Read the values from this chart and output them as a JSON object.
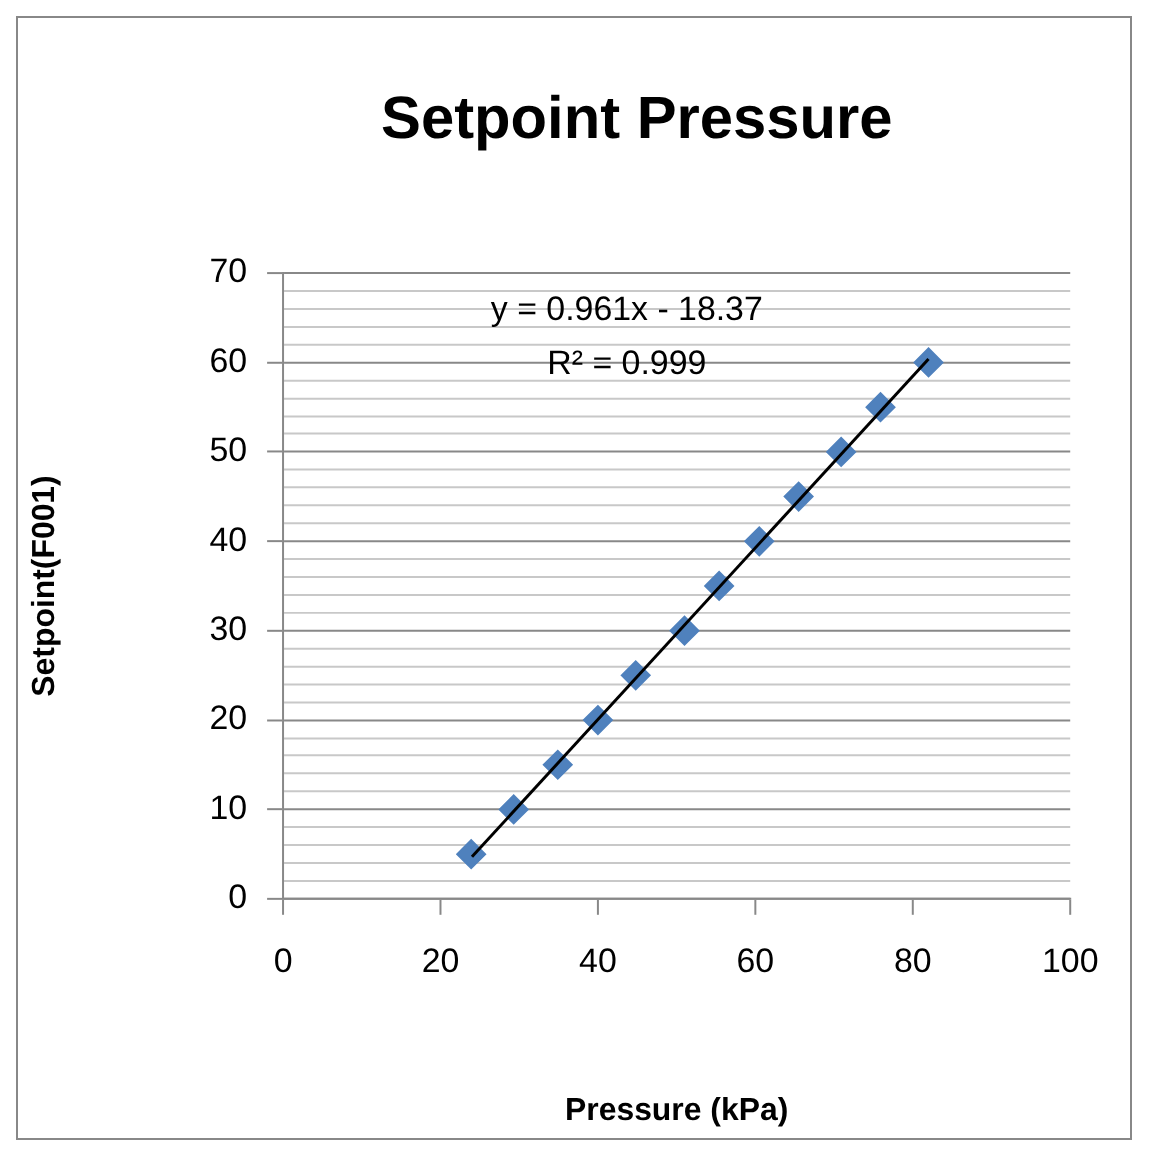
{
  "chart_data": {
    "type": "scatter",
    "title": "Setpoint Pressure",
    "xlabel": "Pressure (kPa)",
    "ylabel": "Setpoint(F001)",
    "annotations": [
      "y = 0.961x - 18.37",
      "R² = 0.999"
    ],
    "series": [
      {
        "type": "scatter",
        "color": "#4f81bd",
        "x": [
          23.9,
          29.3,
          34.9,
          40.0,
          44.8,
          51.0,
          55.4,
          60.5,
          65.5,
          70.9,
          75.9,
          82.0
        ],
        "values": [
          5,
          10,
          15,
          20,
          25,
          30,
          35,
          40,
          45,
          50,
          55,
          60
        ],
        "marker": "diamond"
      },
      {
        "type": "line",
        "color": "#000000",
        "x": [
          24,
          82
        ],
        "values": [
          4.7,
          60.4
        ],
        "marker": "none",
        "line_style": "solid"
      }
    ],
    "xlim": [
      0,
      100
    ],
    "xticks": [
      0,
      20,
      40,
      60,
      80,
      100
    ],
    "ylim": [
      0,
      70
    ],
    "yticks": [
      0,
      {
        "value": 2,
        "label": null
      },
      {
        "value": 4,
        "label": null
      },
      {
        "value": 6,
        "label": null
      },
      {
        "value": 8,
        "label": null
      },
      10,
      {
        "value": 12,
        "label": null
      },
      {
        "value": 14,
        "label": null
      },
      {
        "value": 16,
        "label": null
      },
      {
        "value": 18,
        "label": null
      },
      20,
      {
        "value": 22,
        "label": null
      },
      {
        "value": 24,
        "label": null
      },
      {
        "value": 26,
        "label": null
      },
      {
        "value": 28,
        "label": null
      },
      30,
      {
        "value": 32,
        "label": null
      },
      {
        "value": 34,
        "label": null
      },
      {
        "value": 36,
        "label": null
      },
      {
        "value": 38,
        "label": null
      },
      40,
      {
        "value": 42,
        "label": null
      },
      {
        "value": 44,
        "label": null
      },
      {
        "value": 46,
        "label": null
      },
      {
        "value": 48,
        "label": null
      },
      50,
      {
        "value": 52,
        "label": null
      },
      {
        "value": 54,
        "label": null
      },
      {
        "value": 56,
        "label": null
      },
      {
        "value": 58,
        "label": null
      },
      60,
      {
        "value": 62,
        "label": null
      },
      {
        "value": 64,
        "label": null
      },
      {
        "value": 66,
        "label": null
      },
      {
        "value": 68,
        "label": null
      },
      70
    ],
    "grid": "y",
    "legend": false
  }
}
